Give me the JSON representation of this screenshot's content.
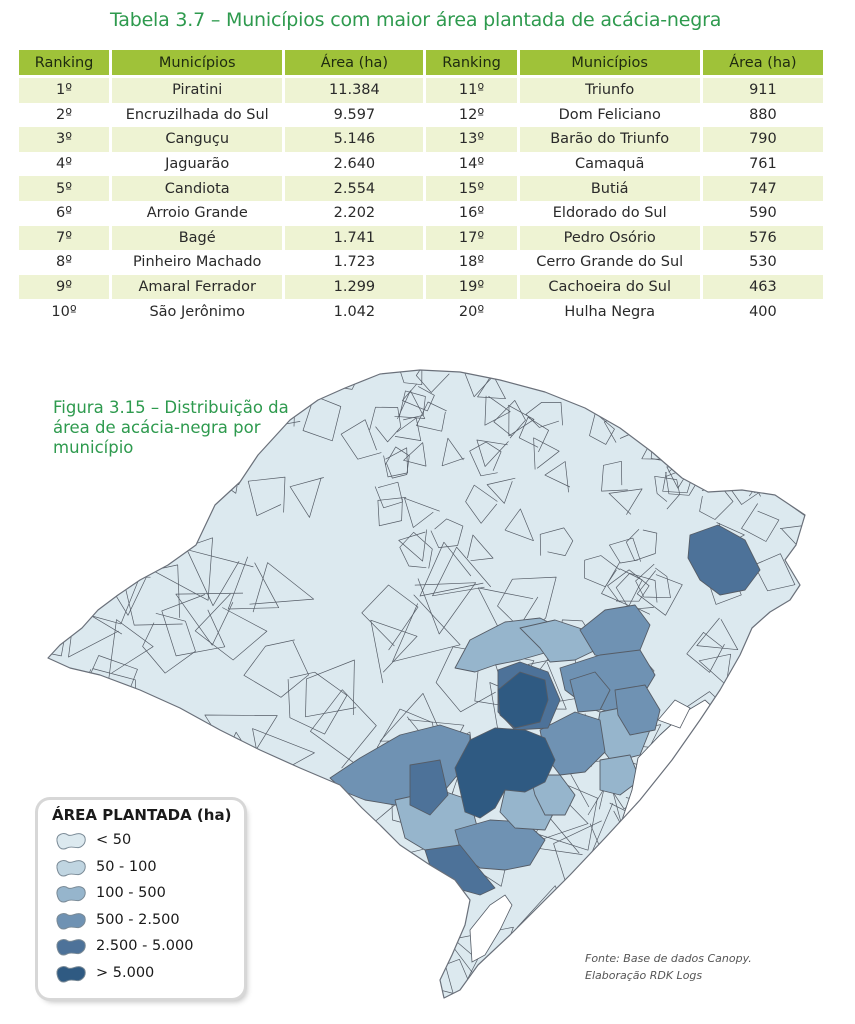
{
  "table": {
    "title": "Tabela 3.7 – Municípios com maior área plantada de acácia-negra",
    "headers": [
      "Ranking",
      "Municípios",
      "Área (ha)",
      "Ranking",
      "Municípios",
      "Área (ha)"
    ],
    "rows": [
      {
        "r1": "1º",
        "m1": "Piratini",
        "a1": "11.384",
        "r2": "11º",
        "m2": "Triunfo",
        "a2": "911"
      },
      {
        "r1": "2º",
        "m1": "Encruzilhada do Sul",
        "a1": "9.597",
        "r2": "12º",
        "m2": "Dom Feliciano",
        "a2": "880"
      },
      {
        "r1": "3º",
        "m1": "Canguçu",
        "a1": "5.146",
        "r2": "13º",
        "m2": "Barão do Triunfo",
        "a2": "790"
      },
      {
        "r1": "4º",
        "m1": "Jaguarão",
        "a1": "2.640",
        "r2": "14º",
        "m2": "Camaquã",
        "a2": "761"
      },
      {
        "r1": "5º",
        "m1": "Candiota",
        "a1": "2.554",
        "r2": "15º",
        "m2": "Butiá",
        "a2": "747"
      },
      {
        "r1": "6º",
        "m1": "Arroio Grande",
        "a1": "2.202",
        "r2": "16º",
        "m2": "Eldorado do Sul",
        "a2": "590"
      },
      {
        "r1": "7º",
        "m1": "Bagé",
        "a1": "1.741",
        "r2": "17º",
        "m2": "Pedro Osório",
        "a2": "576"
      },
      {
        "r1": "8º",
        "m1": "Pinheiro Machado",
        "a1": "1.723",
        "r2": "18º",
        "m2": "Cerro Grande do Sul",
        "a2": "530"
      },
      {
        "r1": "9º",
        "m1": "Amaral Ferrador",
        "a1": "1.299",
        "r2": "19º",
        "m2": "Cachoeira do Sul",
        "a2": "463"
      },
      {
        "r1": "10º",
        "m1": "São Jerônimo",
        "a1": "1.042",
        "r2": "20º",
        "m2": "Hulha Negra",
        "a2": "400"
      }
    ]
  },
  "figure": {
    "title": "Figura 3.15 – Distribuição da área de acácia-negra por município"
  },
  "legend": {
    "title": "ÁREA PLANTADA (ha)",
    "classes": [
      {
        "label": "< 50",
        "color": "#dce9ef"
      },
      {
        "label": "50 - 100",
        "color": "#c0d5e1"
      },
      {
        "label": "100 - 500",
        "color": "#96b5cc"
      },
      {
        "label": "500 - 2.500",
        "color": "#6f92b3"
      },
      {
        "label": "2.500 - 5.000",
        "color": "#4d7299"
      },
      {
        "label": "> 5.000",
        "color": "#2f5a82"
      }
    ]
  },
  "source": {
    "line1": "Fonte: Base de dados Canopy.",
    "line2": "Elaboração RDK Logs"
  },
  "colors": {
    "title_green": "#2e9a4e",
    "header_green": "#9fc239",
    "row_shade": "#eef3d3",
    "water": "#ffffff",
    "border": "#555c66"
  }
}
